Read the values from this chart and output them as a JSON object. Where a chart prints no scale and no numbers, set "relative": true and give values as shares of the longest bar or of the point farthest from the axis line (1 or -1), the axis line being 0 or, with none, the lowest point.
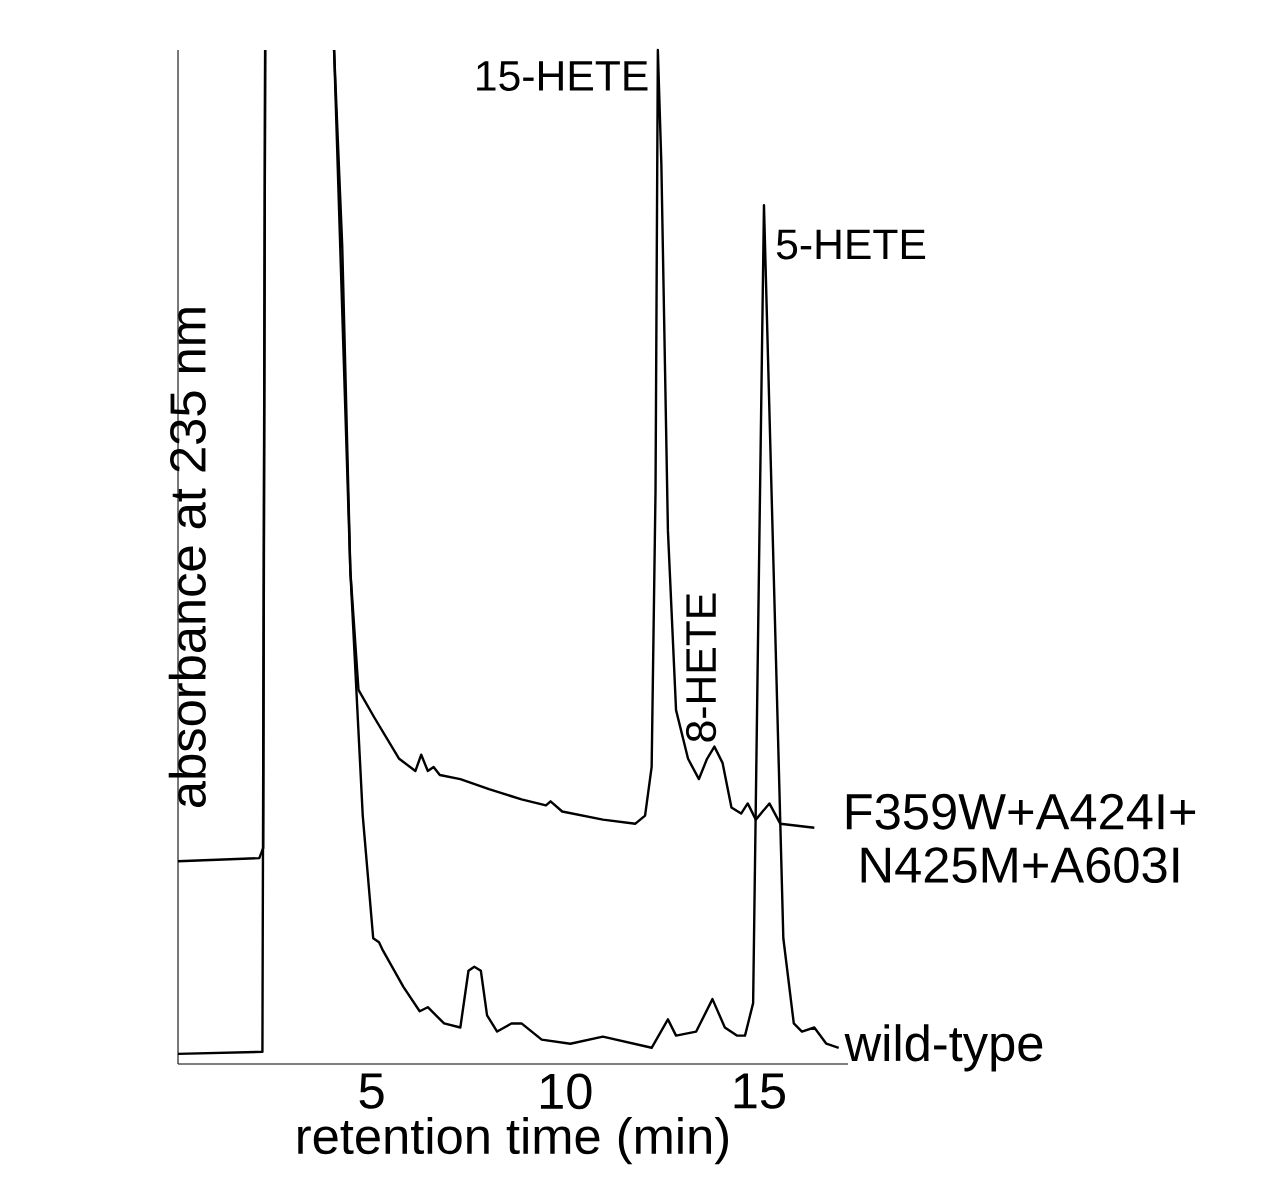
{
  "chart_data": {
    "type": "line",
    "relative": true,
    "xlabel": "retention time (min)",
    "ylabel": "absorbance at 235 nm",
    "xlim": [
      0,
      17.3
    ],
    "xticks": [
      5,
      10,
      15
    ],
    "series": [
      {
        "name": "F359W+A424I+ N425M+A603I",
        "color": "#000000",
        "x": [
          0,
          2.1,
          2.2,
          2.25,
          3,
          4.03,
          4.24,
          4.45,
          4.66,
          5.08,
          5.71,
          6.13,
          6.28,
          6.45,
          6.6,
          6.76,
          7.29,
          8.03,
          8.87,
          9.5,
          9.62,
          9.92,
          10.97,
          11.81,
          12.06,
          12.23,
          12.33,
          12.39,
          12.48,
          12.65,
          12.86,
          13.17,
          13.45,
          13.66,
          13.85,
          14.06,
          14.29,
          14.54,
          14.71,
          14.92,
          15.27,
          15.55,
          16.43
        ],
        "values": [
          0.2,
          0.203,
          0.213,
          1.0,
          null,
          1.0,
          0.807,
          0.486,
          0.369,
          0.341,
          0.301,
          0.289,
          0.305,
          0.289,
          0.293,
          0.285,
          0.281,
          0.271,
          0.261,
          0.255,
          0.259,
          0.249,
          0.241,
          0.237,
          0.245,
          0.293,
          0.566,
          1.0,
          0.888,
          0.526,
          0.349,
          0.301,
          0.281,
          0.301,
          0.313,
          0.297,
          0.253,
          0.247,
          0.257,
          0.241,
          0.257,
          0.237,
          0.233
        ]
      },
      {
        "name": "wild-type",
        "color": "#000000",
        "x": [
          0,
          2.18,
          2.25,
          3,
          4.03,
          4.45,
          4.77,
          5.04,
          5.19,
          5.29,
          5.82,
          6.24,
          6.45,
          6.87,
          7.29,
          7.5,
          7.65,
          7.82,
          7.98,
          8.24,
          8.61,
          8.87,
          9.39,
          10.13,
          10.97,
          12.23,
          12.65,
          12.86,
          13.38,
          13.8,
          14.12,
          14.43,
          14.64,
          14.85,
          15.0,
          15.13,
          15.38,
          15.63,
          15.9,
          16.11,
          16.43,
          16.74,
          17.06
        ],
        "values": [
          0.01,
          0.012,
          1.0,
          null,
          1.0,
          0.486,
          0.245,
          0.124,
          0.12,
          0.112,
          0.076,
          0.052,
          0.056,
          0.04,
          0.036,
          0.092,
          0.096,
          0.092,
          0.048,
          0.032,
          0.04,
          0.04,
          0.024,
          0.02,
          0.027,
          0.016,
          0.044,
          0.028,
          0.032,
          0.064,
          0.036,
          0.028,
          0.028,
          0.06,
          0.486,
          0.847,
          0.486,
          0.124,
          0.04,
          0.032,
          0.036,
          0.02,
          0.016
        ]
      }
    ],
    "annotations": [
      {
        "text": "15-HETE",
        "x": 12.39,
        "y": 1.0
      },
      {
        "text": "5-HETE",
        "x": 15.13,
        "y": 0.847
      },
      {
        "text": "8-HETE",
        "x": 13.85,
        "y": 0.313
      }
    ]
  }
}
